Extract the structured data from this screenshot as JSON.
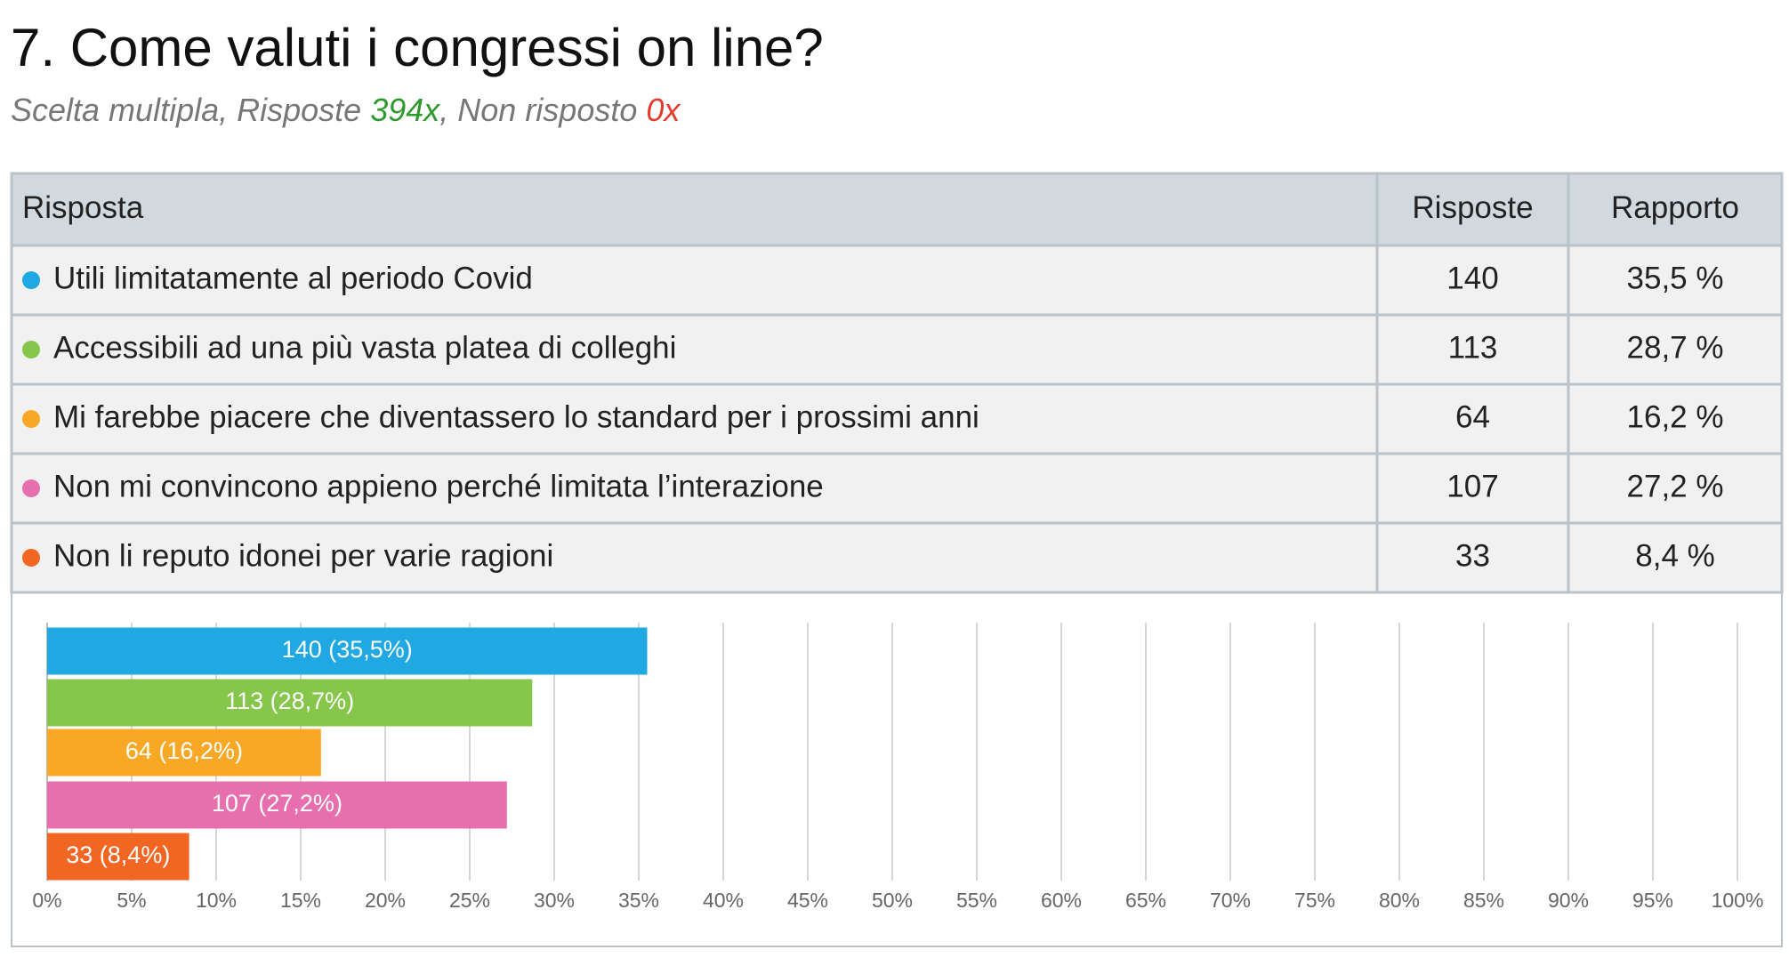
{
  "header": {
    "title": "7. Come valuti i congressi on line?",
    "subtitle": [
      "Scelta multipla, Risposte ",
      "394x",
      ", Non risposto ",
      "0x"
    ]
  },
  "table": {
    "columns": [
      "Risposta",
      "Risposte",
      "Rapporto"
    ],
    "rows": [
      [
        "Utili limitatamente al periodo Covid",
        "140",
        "35,5 %"
      ],
      [
        "Accessibili ad una più vasta platea di colleghi",
        "113",
        "28,7 %"
      ],
      [
        "Mi farebbe piacere che diventassero lo standard per i prossimi anni",
        "64",
        "16,2 %"
      ],
      [
        "Non mi convincono appieno perché limitata l’interazione",
        "107",
        "27,2 %"
      ],
      [
        "Non li reputo idonei per varie ragioni",
        "33",
        "8,4 %"
      ]
    ]
  },
  "chart_data": {
    "type": "bar",
    "orientation": "horizontal",
    "categories": [
      null,
      null,
      null,
      null,
      null
    ],
    "values": [
      35.5,
      28.7,
      16.2,
      27.2,
      8.4
    ],
    "value_labels": [
      "140 (35,5%)",
      "113 (28,7%)",
      "64 (16,2%)",
      "107 (27,2%)",
      "33 (8,4%)"
    ],
    "colors": [
      "#1fa8e1",
      "#86c64a",
      "#f9a826",
      "#e76fad",
      "#f26624"
    ],
    "xlim": [
      0,
      100
    ],
    "xticks": [
      {
        "value": 0,
        "label": "0%"
      },
      {
        "value": 5,
        "label": "5%"
      },
      {
        "value": 10,
        "label": "10%"
      },
      {
        "value": 15,
        "label": "15%"
      },
      {
        "value": 20,
        "label": "20%"
      },
      {
        "value": 25,
        "label": "25%"
      },
      {
        "value": 30,
        "label": "30%"
      },
      {
        "value": 35,
        "label": "35%"
      },
      {
        "value": 40,
        "label": "40%"
      },
      {
        "value": 45,
        "label": "45%"
      },
      {
        "value": 50,
        "label": "50%"
      },
      {
        "value": 55,
        "label": "55%"
      },
      {
        "value": 60,
        "label": "60%"
      },
      {
        "value": 65,
        "label": "65%"
      },
      {
        "value": 70,
        "label": "70%"
      },
      {
        "value": 75,
        "label": "75%"
      },
      {
        "value": 80,
        "label": "80%"
      },
      {
        "value": 85,
        "label": "85%"
      },
      {
        "value": 90,
        "label": "90%"
      },
      {
        "value": 95,
        "label": "95%"
      },
      {
        "value": 100,
        "label": "100%"
      }
    ],
    "grid": true
  }
}
